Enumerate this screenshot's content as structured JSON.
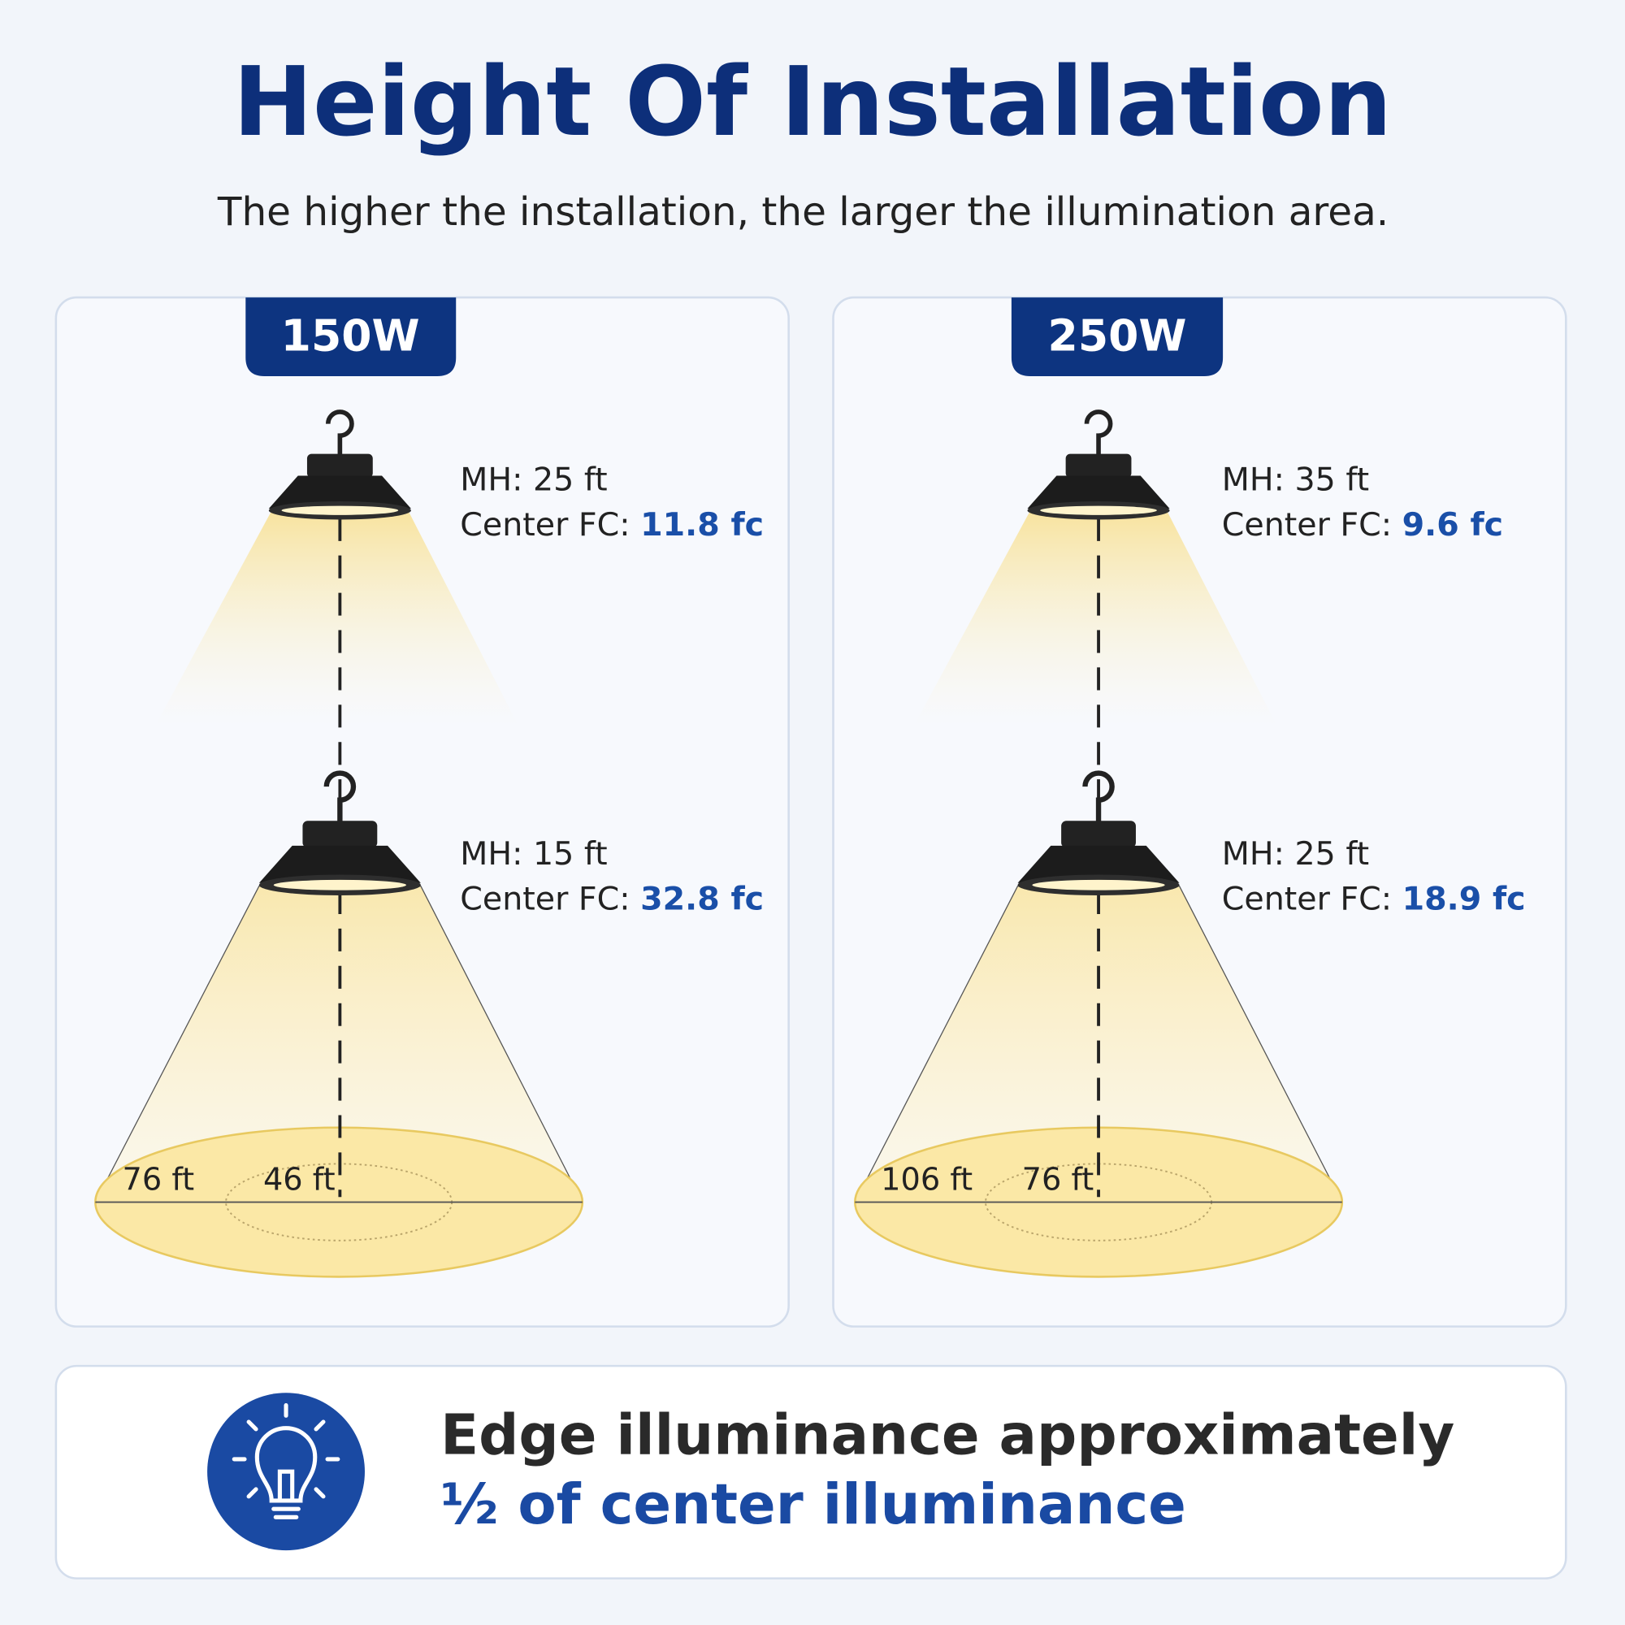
{
  "header": {
    "title": "Height Of Installation",
    "subtitle": "The higher the installation, the larger the illumination area."
  },
  "panels": [
    {
      "label": "150W",
      "lamps": [
        {
          "mh": "MH: 25 ft",
          "fc_label": "Center FC:",
          "fc": "11.8 fc"
        },
        {
          "mh": "MH: 15 ft",
          "fc_label": "Center FC:",
          "fc": "32.8 fc"
        }
      ],
      "outer_diameter": "76 ft",
      "inner_diameter": "46 ft"
    },
    {
      "label": "250W",
      "lamps": [
        {
          "mh": "MH: 35 ft",
          "fc_label": "Center FC:",
          "fc": "9.6 fc"
        },
        {
          "mh": "MH: 25 ft",
          "fc_label": "Center FC:",
          "fc": "18.9 fc"
        }
      ],
      "outer_diameter": "106 ft",
      "inner_diameter": "76 ft"
    }
  ],
  "footer": {
    "line1": "Edge illuminance approximately",
    "line2": "½ of center illuminance"
  }
}
